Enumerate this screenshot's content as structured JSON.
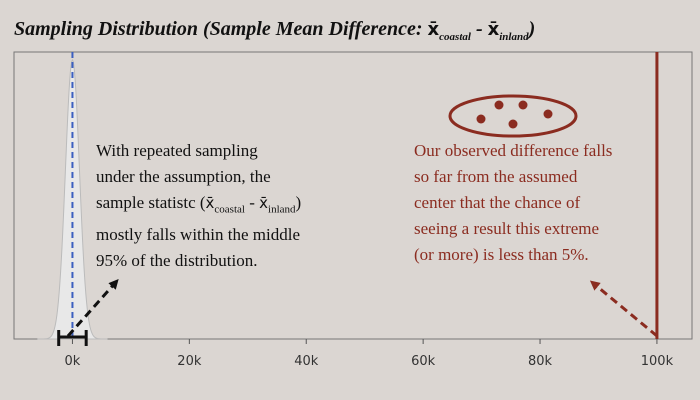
{
  "title": {
    "prefix": "Sampling Distribution (Sample Mean Difference: ",
    "xbar1": "x̄",
    "sub1": "coastal",
    "minus": " - ",
    "xbar2": "x̄",
    "sub2": "inland",
    "suffix": ")"
  },
  "note_left": {
    "line1": "With repeated sampling",
    "line2": "under the assumption, the",
    "line3_pre": "sample statistc (",
    "xbar1": "x̄",
    "sub1": "coastal",
    "minus": " - ",
    "xbar2": "x̄",
    "sub2": "inland",
    "line3_post": ")",
    "line4": "mostly falls within the middle",
    "line5": "95% of the distribution."
  },
  "note_right": {
    "line1": "Our observed difference falls",
    "line2": "so far from the assumed",
    "line3": "center that the chance of",
    "line4": "seeing a result this extreme",
    "line5": "(or more) is less than 5%."
  },
  "colors": {
    "background": "#dbd6d2",
    "axis": "#777777",
    "curve_fill": "#e8e8e8",
    "center_line": "#3b5fc0",
    "observed_line": "#8b2c20",
    "text_dark": "#111111",
    "text_red": "#8b2c20"
  },
  "chart_data": {
    "type": "area",
    "xlim": [
      -10000,
      106000
    ],
    "x_ticks": [
      0,
      20000,
      40000,
      60000,
      80000,
      100000
    ],
    "x_tick_labels": [
      "0k",
      "20k",
      "40k",
      "60k",
      "80k",
      "100k"
    ],
    "distribution": {
      "shape": "normal",
      "center": 0,
      "sd": 1200
    },
    "confidence_interval": [
      -2350,
      2350
    ],
    "center_line_x": 0,
    "observed_value": 100000,
    "sample_dots": 5,
    "grid": false
  }
}
